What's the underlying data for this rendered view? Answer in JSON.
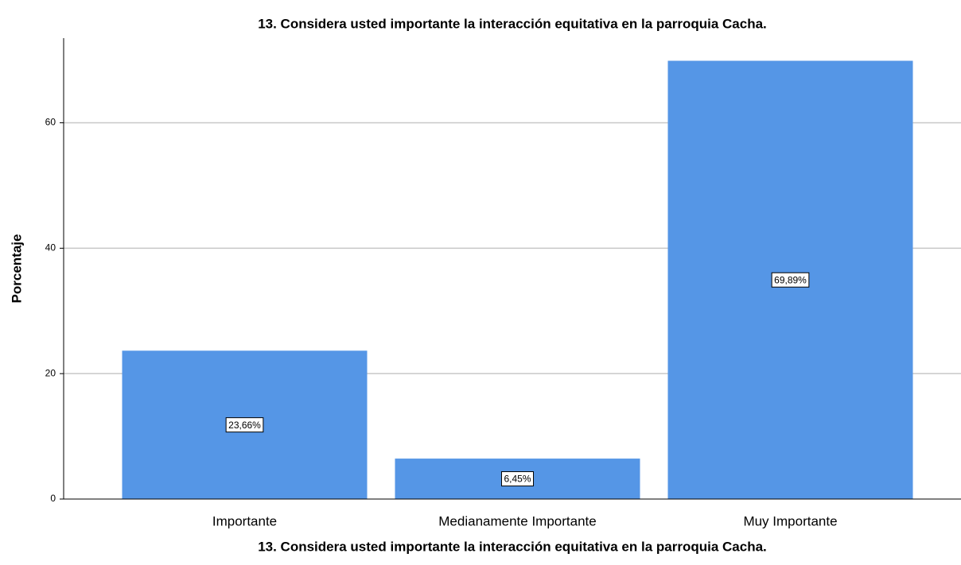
{
  "chart_data": {
    "type": "bar",
    "title": "13. Considera usted importante la interacción equitativa en la parroquia Cacha.",
    "x_label": "13. Considera usted importante la interacción equitativa en la parroquia Cacha.",
    "y_label": "Porcentaje",
    "categories": [
      "Importante",
      "Medianamente Importante",
      "Muy Importante"
    ],
    "values": [
      23.66,
      6.45,
      69.89
    ],
    "value_labels": [
      "23,66%",
      "6,45%",
      "69,89%"
    ],
    "color": "#5596e6",
    "ylim": [
      0,
      73.5
    ],
    "yticks": [
      0,
      20,
      40,
      60
    ],
    "grid": true
  }
}
